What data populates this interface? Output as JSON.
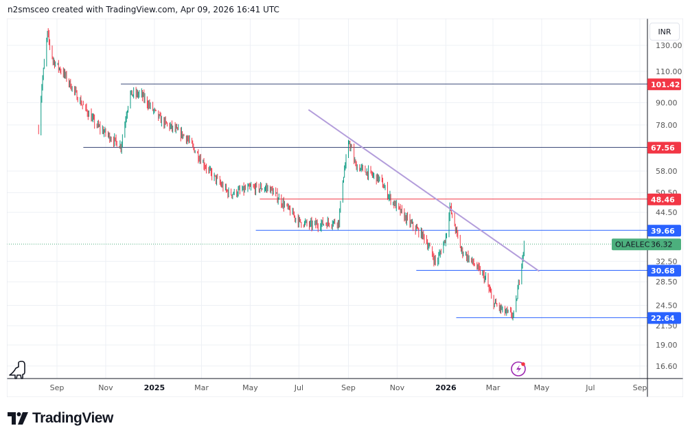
{
  "header": {
    "attribution": "n2smsceo created with TradingView.com, Apr 09, 2026 16:41 UTC"
  },
  "currency_button": "INR",
  "brand": {
    "name": "TradingView"
  },
  "chart_data": {
    "type": "candlestick",
    "symbol": "OLAELEC",
    "last_price": "36.32",
    "scale": "log",
    "price_ticks": [
      "130.00",
      "110.00",
      "90.00",
      "78.00",
      "58.00",
      "50.50",
      "44.50",
      "32.50",
      "28.50",
      "24.50",
      "21.50",
      "19.00",
      "16.60"
    ],
    "price_tick_values": [
      130,
      110,
      90,
      78,
      58,
      50.5,
      44.5,
      32.5,
      28.5,
      24.5,
      21.5,
      19,
      16.6
    ],
    "time_ticks": [
      {
        "label": "Sep",
        "date": "2024-09-01",
        "bold": false
      },
      {
        "label": "Nov",
        "date": "2024-11-01",
        "bold": false
      },
      {
        "label": "2025",
        "date": "2025-01-01",
        "bold": true
      },
      {
        "label": "Mar",
        "date": "2025-03-01",
        "bold": false
      },
      {
        "label": "May",
        "date": "2025-05-01",
        "bold": false
      },
      {
        "label": "Jul",
        "date": "2025-07-01",
        "bold": false
      },
      {
        "label": "Sep",
        "date": "2025-09-01",
        "bold": false
      },
      {
        "label": "Nov",
        "date": "2025-11-01",
        "bold": false
      },
      {
        "label": "2026",
        "date": "2026-01-01",
        "bold": true
      },
      {
        "label": "Mar",
        "date": "2026-03-01",
        "bold": false
      },
      {
        "label": "May",
        "date": "2026-05-01",
        "bold": false
      },
      {
        "label": "Jul",
        "date": "2026-07-01",
        "bold": false
      },
      {
        "label": "Sep",
        "date": "2026-09-01",
        "bold": false
      }
    ],
    "price_path": [
      [
        "2024-08-09",
        76
      ],
      [
        "2024-08-13",
        100
      ],
      [
        "2024-08-20",
        140
      ],
      [
        "2024-08-27",
        118
      ],
      [
        "2024-09-10",
        108
      ],
      [
        "2024-10-01",
        90
      ],
      [
        "2024-10-20",
        78
      ],
      [
        "2024-11-20",
        68
      ],
      [
        "2024-12-01",
        95
      ],
      [
        "2024-12-15",
        95
      ],
      [
        "2025-01-10",
        80
      ],
      [
        "2025-02-10",
        72
      ],
      [
        "2025-03-10",
        58
      ],
      [
        "2025-04-05",
        50
      ],
      [
        "2025-05-01",
        52
      ],
      [
        "2025-05-25",
        52
      ],
      [
        "2025-07-01",
        42
      ],
      [
        "2025-07-15",
        41
      ],
      [
        "2025-08-20",
        42
      ],
      [
        "2025-08-25",
        55
      ],
      [
        "2025-09-02",
        70
      ],
      [
        "2025-09-10",
        60
      ],
      [
        "2025-10-10",
        55
      ],
      [
        "2025-10-25",
        48
      ],
      [
        "2025-11-15",
        42
      ],
      [
        "2025-12-05",
        38
      ],
      [
        "2025-12-20",
        32
      ],
      [
        "2026-01-01",
        38
      ],
      [
        "2026-01-06",
        46
      ],
      [
        "2026-01-20",
        35
      ],
      [
        "2026-02-05",
        32
      ],
      [
        "2026-02-20",
        29
      ],
      [
        "2026-03-01",
        25
      ],
      [
        "2026-03-15",
        23.5
      ],
      [
        "2026-03-28",
        23
      ],
      [
        "2026-04-02",
        28
      ],
      [
        "2026-04-09",
        36.32
      ]
    ],
    "horizontal_levels": [
      {
        "price": 101.42,
        "label": "101.42",
        "start": "2024-11-20",
        "line_color": "#3c4a78",
        "label_color": "#f23645"
      },
      {
        "price": 67.56,
        "label": "67.56",
        "start": "2024-10-04",
        "line_color": "#3c4a78",
        "label_color": "#f23645"
      },
      {
        "price": 48.46,
        "label": "48.46",
        "start": "2025-05-13",
        "line_color": "#f23645",
        "label_color": "#f23645"
      },
      {
        "price": 39.66,
        "label": "39.66",
        "start": "2025-05-08",
        "line_color": "#2962ff",
        "label_color": "#2962ff"
      },
      {
        "price": 30.68,
        "label": "30.68",
        "start": "2025-11-25",
        "line_color": "#2962ff",
        "label_color": "#2962ff"
      },
      {
        "price": 22.64,
        "label": "22.64",
        "start": "2026-01-14",
        "line_color": "#2962ff",
        "label_color": "#2962ff"
      }
    ],
    "trendline": {
      "from": [
        "2025-07-13",
        86
      ],
      "to": [
        "2026-04-28",
        30.5
      ],
      "color": "#b39ddb"
    },
    "colors": {
      "up": "#089981",
      "down": "#f23645",
      "last": "#4caf7d"
    }
  }
}
